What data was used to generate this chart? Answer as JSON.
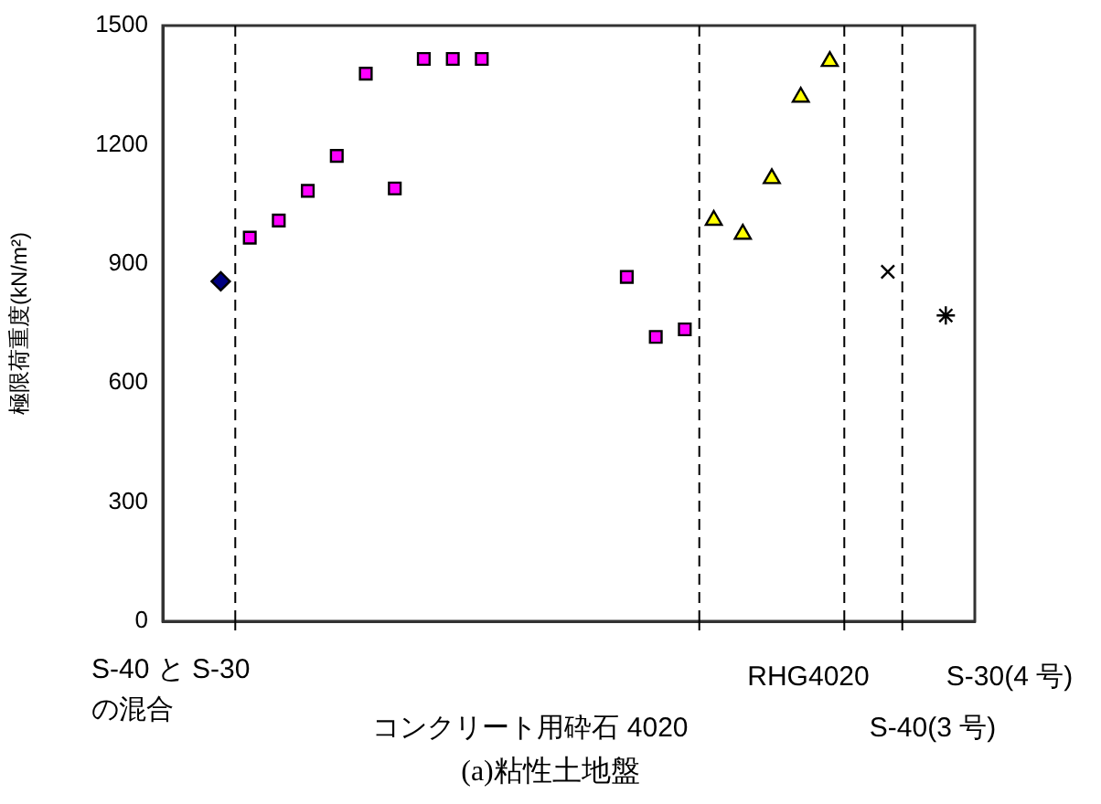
{
  "chart_data": {
    "type": "scatter",
    "title": "(a)粘性土地盤",
    "ylabel": "極限荷重度(kN/m²)",
    "categories": [
      null,
      null,
      null,
      null,
      null,
      null,
      null,
      null,
      null,
      null,
      null,
      null,
      null,
      null,
      null,
      null,
      null,
      null,
      null,
      null,
      null,
      null,
      null,
      null,
      null,
      null,
      null,
      null,
      null
    ],
    "ylim": [
      0,
      1500
    ],
    "yticks": [
      0,
      300,
      600,
      900,
      1200,
      1500
    ],
    "grid": false,
    "legend": false,
    "series": [
      {
        "color": "#000080",
        "marker": "diamond",
        "values": [
          null,
          null,
          856,
          null,
          null,
          null,
          null,
          null,
          null,
          null,
          null,
          null,
          null,
          null,
          null,
          null,
          null,
          null,
          null,
          null,
          null,
          null,
          null,
          null,
          null,
          null,
          null,
          null,
          null
        ]
      },
      {
        "color": "#ff00ff",
        "marker": "square",
        "values": [
          null,
          null,
          null,
          966,
          1009,
          1084,
          1172,
          1379,
          1090,
          1416,
          1416,
          1416,
          null,
          null,
          null,
          null,
          867,
          716,
          735,
          null,
          null,
          null,
          null,
          null,
          null,
          null,
          null,
          null,
          null
        ]
      },
      {
        "color": "#ffff00",
        "marker": "triangle",
        "values": [
          null,
          null,
          null,
          null,
          null,
          null,
          null,
          null,
          null,
          null,
          null,
          null,
          null,
          null,
          null,
          null,
          null,
          null,
          null,
          1010,
          975,
          1115,
          1320,
          1410,
          null,
          null,
          null,
          null,
          null
        ]
      },
      {
        "color": "#000000",
        "marker": "cross",
        "values": [
          null,
          null,
          null,
          null,
          null,
          null,
          null,
          null,
          null,
          null,
          null,
          null,
          null,
          null,
          null,
          null,
          null,
          null,
          null,
          null,
          null,
          null,
          null,
          null,
          null,
          880,
          null,
          null,
          null
        ]
      },
      {
        "color": "#000000",
        "values": [
          null,
          null,
          null,
          null,
          null,
          null,
          null,
          null,
          null,
          null,
          null,
          null,
          null,
          null,
          null,
          null,
          null,
          null,
          null,
          null,
          null,
          null,
          null,
          null,
          null,
          null,
          null,
          770,
          null
        ]
      }
    ],
    "annotations": [
      "S-40 と S-30の混合",
      "コンクリート用砕石 4020",
      "RHG4020",
      "S-40(3 号)",
      "S-30(4 号)"
    ]
  }
}
